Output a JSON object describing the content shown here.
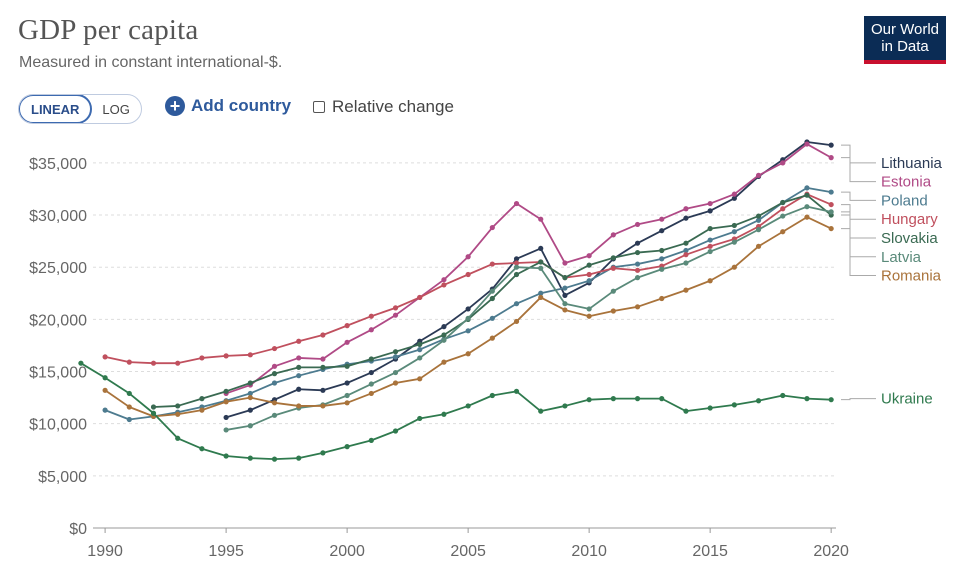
{
  "header": {
    "title": "GDP per capita",
    "subtitle": "Measured in constant international-$.",
    "logo_line1": "Our World",
    "logo_line2": "in Data"
  },
  "controls": {
    "linear_label": "LINEAR",
    "log_label": "LOG",
    "add_country_label": "Add country",
    "relative_change_label": "Relative change"
  },
  "chart_data": {
    "type": "line",
    "title": "GDP per capita",
    "subtitle": "Measured in constant international-$.",
    "xlim": [
      1990,
      2020
    ],
    "ylim": [
      0,
      37000
    ],
    "x_ticks": [
      1990,
      1995,
      2000,
      2005,
      2010,
      2015,
      2020
    ],
    "x_tick_labels": [
      "1990",
      "1995",
      "2000",
      "2005",
      "2010",
      "2015",
      "2020"
    ],
    "y_ticks": [
      0,
      5000,
      10000,
      15000,
      20000,
      25000,
      30000,
      35000
    ],
    "y_tick_labels": [
      "$0",
      "$5,000",
      "$10,000",
      "$15,000",
      "$20,000",
      "$25,000",
      "$30,000",
      "$35,000"
    ],
    "grid": true,
    "legend": "right-end labels",
    "series": [
      {
        "name": "Lithuania",
        "color": "#2b3a55",
        "label_y": 35000,
        "x": [
          1995,
          1996,
          1997,
          1998,
          1999,
          2000,
          2001,
          2002,
          2003,
          2004,
          2005,
          2006,
          2007,
          2008,
          2009,
          2010,
          2011,
          2012,
          2013,
          2014,
          2015,
          2016,
          2017,
          2018,
          2019,
          2020
        ],
        "values": [
          10600,
          11300,
          12300,
          13300,
          13200,
          13900,
          14900,
          16200,
          17900,
          19300,
          21000,
          22900,
          25800,
          26800,
          22300,
          23500,
          25800,
          27300,
          28500,
          29700,
          30400,
          31600,
          33700,
          35300,
          37000,
          36700
        ]
      },
      {
        "name": "Estonia",
        "color": "#b04a86",
        "label_y": 33200,
        "x": [
          1995,
          1996,
          1997,
          1998,
          1999,
          2000,
          2001,
          2002,
          2003,
          2004,
          2005,
          2006,
          2007,
          2008,
          2009,
          2010,
          2011,
          2012,
          2013,
          2014,
          2015,
          2016,
          2017,
          2018,
          2019,
          2020
        ],
        "values": [
          12900,
          13700,
          15500,
          16300,
          16200,
          17800,
          19000,
          20400,
          22100,
          23800,
          26000,
          28800,
          31100,
          29600,
          25400,
          26100,
          28100,
          29100,
          29600,
          30600,
          31100,
          32000,
          33800,
          35000,
          36800,
          35500
        ]
      },
      {
        "name": "Poland",
        "color": "#4d7b8f",
        "label_y": 31400,
        "x": [
          1990,
          1991,
          1992,
          1993,
          1994,
          1995,
          1996,
          1997,
          1998,
          1999,
          2000,
          2001,
          2002,
          2003,
          2004,
          2005,
          2006,
          2007,
          2008,
          2009,
          2010,
          2011,
          2012,
          2013,
          2014,
          2015,
          2016,
          2017,
          2018,
          2019,
          2020
        ],
        "values": [
          11300,
          10400,
          10700,
          11100,
          11600,
          12200,
          12900,
          13900,
          14600,
          15200,
          15700,
          16000,
          16400,
          17100,
          18100,
          18900,
          20100,
          21500,
          22500,
          23000,
          23700,
          25000,
          25300,
          25800,
          26600,
          27600,
          28400,
          29500,
          31200,
          32600,
          32200
        ]
      },
      {
        "name": "Hungary",
        "color": "#c0505e",
        "label_y": 29600,
        "x": [
          1990,
          1991,
          1992,
          1993,
          1994,
          1995,
          1996,
          1997,
          1998,
          1999,
          2000,
          2001,
          2002,
          2003,
          2004,
          2005,
          2006,
          2007,
          2008,
          2009,
          2010,
          2011,
          2012,
          2013,
          2014,
          2015,
          2016,
          2017,
          2018,
          2019,
          2020
        ],
        "values": [
          16400,
          15900,
          15800,
          15800,
          16300,
          16500,
          16600,
          17200,
          17900,
          18500,
          19400,
          20300,
          21100,
          22100,
          23300,
          24300,
          25300,
          25400,
          25500,
          24000,
          24300,
          24900,
          24700,
          25100,
          26200,
          27000,
          27700,
          28900,
          30600,
          32000,
          31000
        ]
      },
      {
        "name": "Slovakia",
        "color": "#3a6a52",
        "label_y": 27800,
        "x": [
          1992,
          1993,
          1994,
          1995,
          1996,
          1997,
          1998,
          1999,
          2000,
          2001,
          2002,
          2003,
          2004,
          2005,
          2006,
          2007,
          2008,
          2009,
          2010,
          2011,
          2012,
          2013,
          2014,
          2015,
          2016,
          2017,
          2018,
          2019,
          2020
        ],
        "values": [
          11600,
          11700,
          12400,
          13100,
          13900,
          14800,
          15400,
          15400,
          15500,
          16200,
          16900,
          17600,
          18500,
          20000,
          22000,
          24300,
          25500,
          24000,
          25200,
          25900,
          26400,
          26600,
          27300,
          28700,
          29000,
          29900,
          31200,
          31900,
          30000
        ]
      },
      {
        "name": "Latvia",
        "color": "#5a8a7a",
        "label_y": 26000,
        "x": [
          1995,
          1996,
          1997,
          1998,
          1999,
          2000,
          2001,
          2002,
          2003,
          2004,
          2005,
          2006,
          2007,
          2008,
          2009,
          2010,
          2011,
          2012,
          2013,
          2014,
          2015,
          2016,
          2017,
          2018,
          2019,
          2020
        ],
        "values": [
          9400,
          9800,
          10800,
          11500,
          11800,
          12700,
          13800,
          14900,
          16300,
          18000,
          20100,
          22700,
          25000,
          24900,
          21500,
          21000,
          22700,
          24000,
          24800,
          25400,
          26500,
          27400,
          28600,
          29900,
          30800,
          30300
        ]
      },
      {
        "name": "Romania",
        "color": "#a9733b",
        "label_y": 24200,
        "x": [
          1990,
          1991,
          1992,
          1993,
          1994,
          1995,
          1996,
          1997,
          1998,
          1999,
          2000,
          2001,
          2002,
          2003,
          2004,
          2005,
          2006,
          2007,
          2008,
          2009,
          2010,
          2011,
          2012,
          2013,
          2014,
          2015,
          2016,
          2017,
          2018,
          2019,
          2020
        ],
        "values": [
          13200,
          11600,
          10700,
          10900,
          11300,
          12100,
          12500,
          12000,
          11700,
          11700,
          12000,
          12900,
          13900,
          14300,
          15900,
          16700,
          18200,
          19800,
          22100,
          20900,
          20300,
          20800,
          21200,
          22000,
          22800,
          23700,
          25000,
          27000,
          28400,
          29800,
          28700
        ]
      },
      {
        "name": "Ukraine",
        "color": "#2f7a4e",
        "label_y": 12400,
        "x": [
          1989,
          1990,
          1991,
          1992,
          1993,
          1994,
          1995,
          1996,
          1997,
          1998,
          1999,
          2000,
          2001,
          2002,
          2003,
          2004,
          2005,
          2006,
          2007,
          2008,
          2009,
          2010,
          2011,
          2012,
          2013,
          2014,
          2015,
          2016,
          2017,
          2018,
          2019,
          2020
        ],
        "values": [
          15800,
          14400,
          12900,
          11000,
          8600,
          7600,
          6900,
          6700,
          6600,
          6700,
          7200,
          7800,
          8400,
          9300,
          10500,
          10900,
          11700,
          12700,
          13100,
          11200,
          11700,
          12300,
          12400,
          12400,
          12400,
          11200,
          11500,
          11800,
          12200,
          12700,
          12400,
          12300
        ]
      }
    ]
  }
}
